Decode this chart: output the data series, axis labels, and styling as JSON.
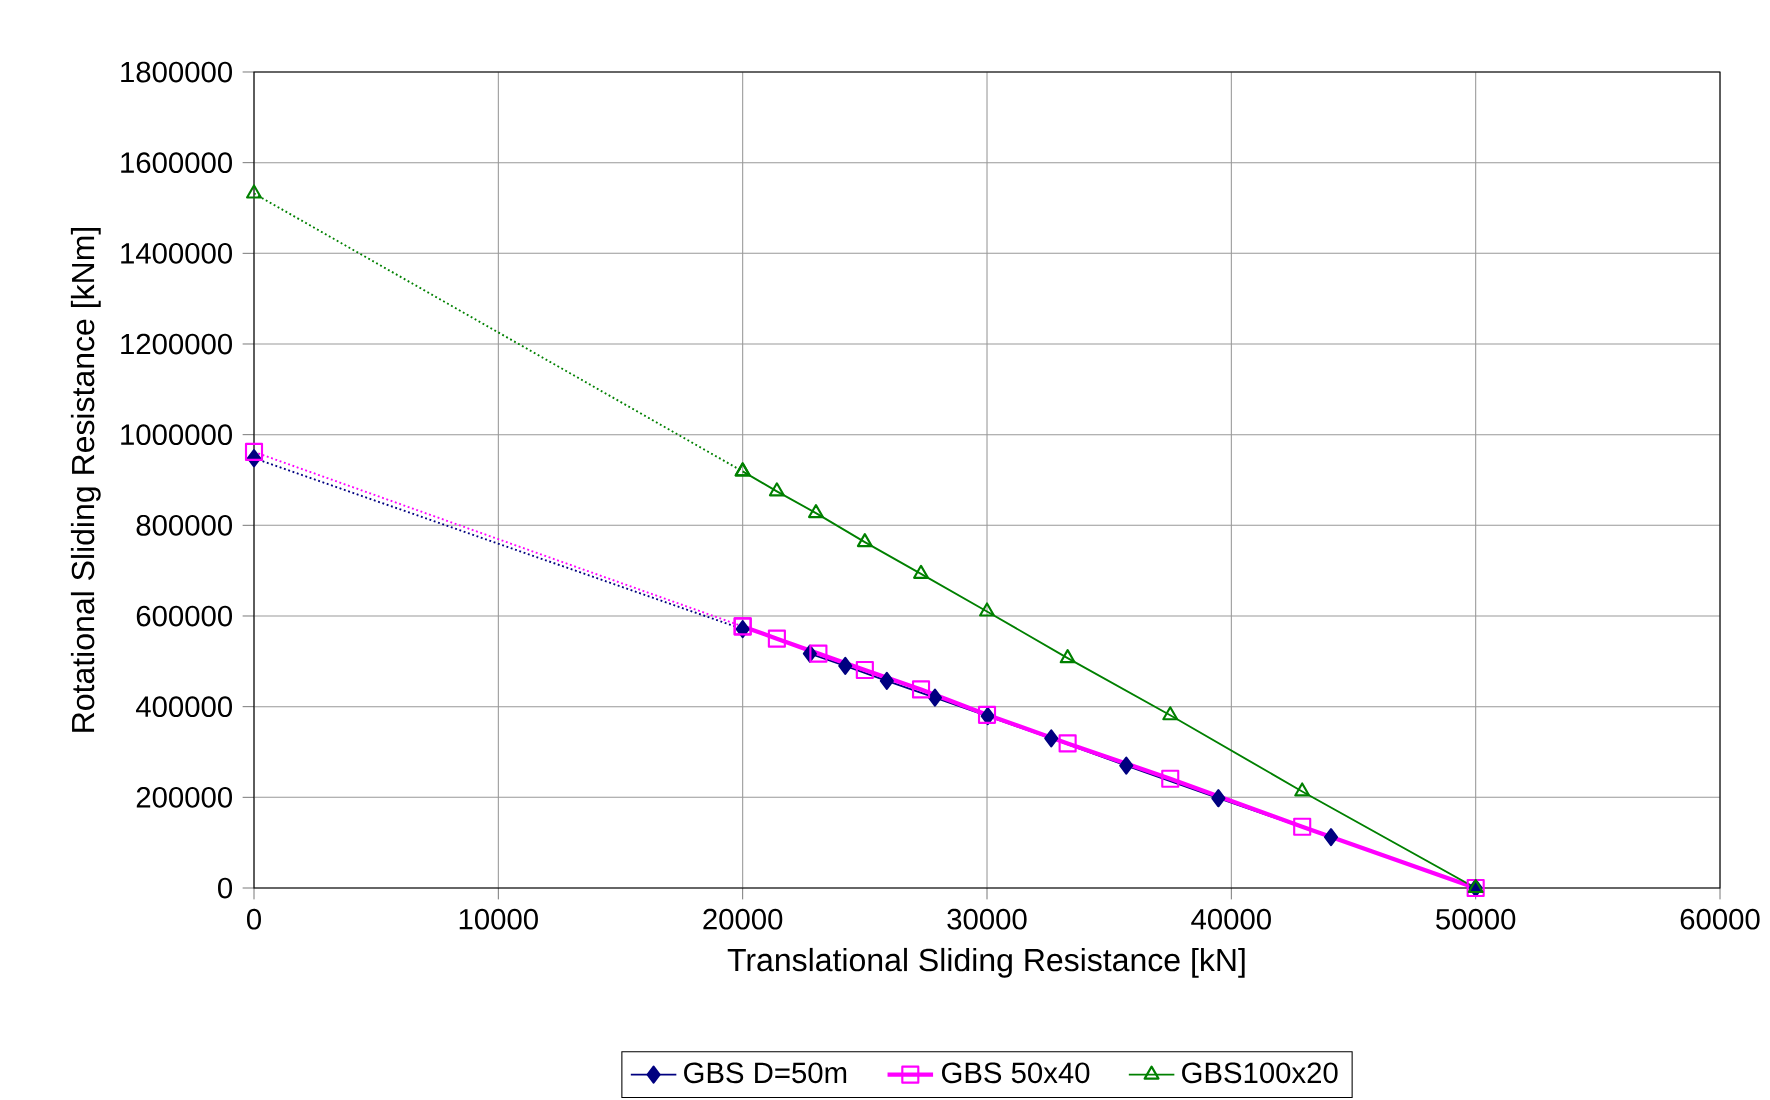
{
  "chart_data": {
    "type": "line",
    "xlabel": "Translational Sliding Resistance [kN]",
    "ylabel": "Rotational Sliding Resistance [kNm]",
    "xlim": [
      0,
      60000
    ],
    "ylim": [
      0,
      1800000
    ],
    "xticks": [
      0,
      10000,
      20000,
      30000,
      40000,
      50000,
      60000
    ],
    "yticks": [
      0,
      200000,
      400000,
      600000,
      800000,
      1000000,
      1200000,
      1400000,
      1600000,
      1800000
    ],
    "grid": true,
    "legend": "bottom",
    "series": [
      {
        "name": "GBS D=50m",
        "color": "#000080",
        "marker": "diamond",
        "line_style": "solid",
        "x": [
          22750,
          24200,
          25900,
          27870,
          30030,
          32630,
          35700,
          39470,
          44080,
          50000
        ],
        "values": [
          517000,
          490000,
          457000,
          420000,
          379000,
          330000,
          270000,
          198000,
          112000,
          0
        ]
      },
      {
        "name": "GBS 50x40",
        "color": "#ff00ff",
        "marker": "square",
        "line_style": "solid",
        "x": [
          20000,
          21400,
          23100,
          25000,
          27300,
          30000,
          33300,
          37500,
          42900,
          50000
        ],
        "values": [
          577000,
          550000,
          517000,
          481000,
          438000,
          382000,
          319000,
          241000,
          135000,
          0
        ]
      },
      {
        "name": "GBS100x20",
        "color": "#008000",
        "marker": "triangle",
        "line_style": "solid",
        "x": [
          20000,
          21400,
          23000,
          25000,
          27300,
          30000,
          33300,
          37500,
          42900,
          50000
        ],
        "values": [
          919000,
          875000,
          827000,
          763000,
          693000,
          610000,
          507000,
          381000,
          213000,
          0
        ]
      },
      {
        "color": "#000080",
        "marker": "diamond",
        "line_style": "dotted",
        "x": [
          0,
          20000
        ],
        "values": [
          948000,
          571000
        ]
      },
      {
        "color": "#ff00ff",
        "marker": "square",
        "line_style": "dotted",
        "x": [
          0,
          20000
        ],
        "values": [
          962000,
          577000
        ]
      },
      {
        "color": "#008000",
        "marker": "triangle",
        "line_style": "dotted",
        "x": [
          0,
          20000
        ],
        "values": [
          1532000,
          919000
        ]
      }
    ]
  }
}
